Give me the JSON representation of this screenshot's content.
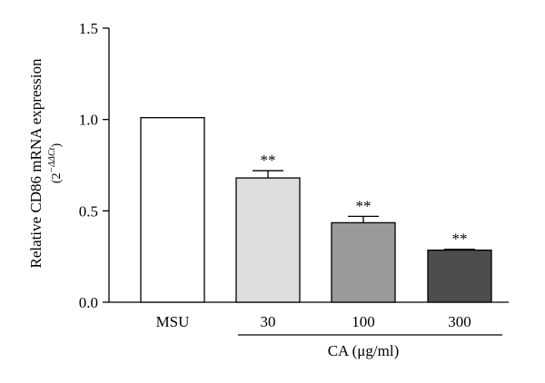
{
  "chart_data": {
    "type": "bar",
    "title": "",
    "ylabel_main": "Relative CD86 mRNA expression",
    "ylabel_sub_prefix": "(2",
    "ylabel_sub_superscript": "−ΔΔCt",
    "ylabel_sub_suffix": ")",
    "ylim": [
      0,
      1.5
    ],
    "yticks": [
      "0.0",
      "0.5",
      "1.0",
      "1.5"
    ],
    "ytick_values": [
      0,
      0.5,
      1.0,
      1.5
    ],
    "categories": [
      "MSU",
      "30",
      "100",
      "300"
    ],
    "values": [
      1.01,
      0.68,
      0.435,
      0.285
    ],
    "errors": [
      0,
      0.04,
      0.035,
      0.005
    ],
    "bar_colors": [
      "#ffffff",
      "#dedede",
      "#9a9a9a",
      "#4d4d4d"
    ],
    "significance": [
      "",
      "**",
      "**",
      "**"
    ],
    "group_label": "CA (μg/ml)",
    "grid": false,
    "legend": "none"
  }
}
